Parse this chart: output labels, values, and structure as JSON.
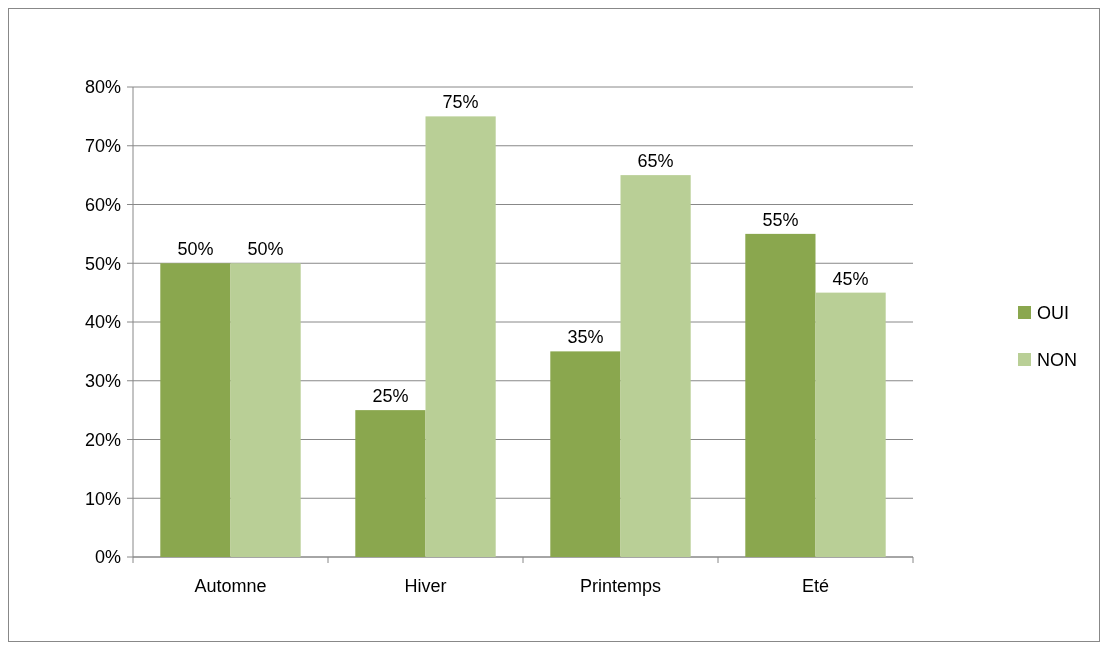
{
  "chart_data": {
    "type": "bar",
    "categories": [
      "Automne",
      "Hiver",
      "Printemps",
      "Eté"
    ],
    "series": [
      {
        "name": "OUI",
        "color": "#8aa74e",
        "values": [
          50,
          25,
          35,
          55
        ],
        "value_labels": [
          "50%",
          "25%",
          "35%",
          "55%"
        ]
      },
      {
        "name": "NON",
        "color": "#b9cf96",
        "values": [
          50,
          75,
          65,
          45
        ],
        "value_labels": [
          "50%",
          "75%",
          "65%",
          "45%"
        ]
      }
    ],
    "ylim": [
      0,
      80
    ],
    "yticks": [
      {
        "value": 0,
        "label": "0%"
      },
      {
        "value": 10,
        "label": "10%"
      },
      {
        "value": 20,
        "label": "20%"
      },
      {
        "value": 30,
        "label": "30%"
      },
      {
        "value": 40,
        "label": "40%"
      },
      {
        "value": 50,
        "label": "50%"
      },
      {
        "value": 60,
        "label": "60%"
      },
      {
        "value": 70,
        "label": "70%"
      },
      {
        "value": 80,
        "label": "80%"
      }
    ],
    "grid": "y",
    "legend": "right"
  }
}
